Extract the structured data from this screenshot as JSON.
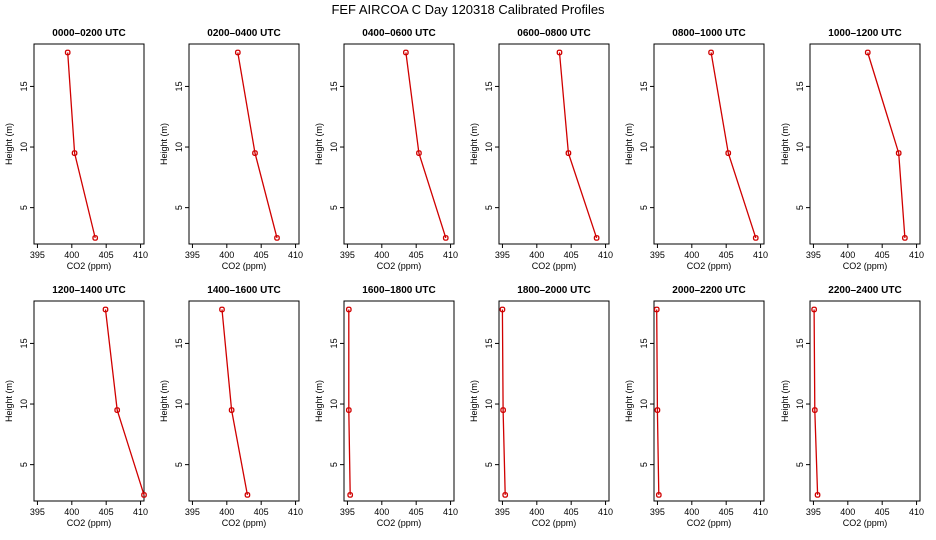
{
  "title": "FEF AIRCOA C  Day 120318  Calibrated Profiles",
  "chart_data": {
    "type": "line",
    "title": "FEF AIRCOA C  Day 120318  Calibrated Profiles",
    "xlabel": "CO2 (ppm)",
    "ylabel": "Height (m)",
    "xlim": [
      394.5,
      410.5
    ],
    "ylim": [
      2,
      18.5
    ],
    "xticks": [
      395,
      400,
      405,
      410
    ],
    "yticks": [
      5,
      10,
      15
    ],
    "heights": [
      17.8,
      9.5,
      2.5
    ],
    "series_color": "#d00000",
    "panels": [
      {
        "title": "0000–0200 UTC",
        "values": [
          399.4,
          400.4,
          403.4
        ]
      },
      {
        "title": "0200–0400 UTC",
        "values": [
          401.6,
          404.1,
          407.3
        ]
      },
      {
        "title": "0400–0600 UTC",
        "values": [
          403.5,
          405.4,
          409.3
        ]
      },
      {
        "title": "0600–0800 UTC",
        "values": [
          403.3,
          404.6,
          408.7
        ]
      },
      {
        "title": "0800–1000 UTC",
        "values": [
          402.8,
          405.3,
          409.3
        ]
      },
      {
        "title": "1000–1200 UTC",
        "values": [
          402.9,
          407.4,
          408.3
        ]
      },
      {
        "title": "1200–1400 UTC",
        "values": [
          404.9,
          406.6,
          410.5
        ]
      },
      {
        "title": "1400–1600 UTC",
        "values": [
          399.3,
          400.7,
          403.0
        ]
      },
      {
        "title": "1600–1800 UTC",
        "values": [
          395.2,
          395.2,
          395.4
        ]
      },
      {
        "title": "1800–2000 UTC",
        "values": [
          395.0,
          395.1,
          395.4
        ]
      },
      {
        "title": "2000–2200 UTC",
        "values": [
          394.9,
          395.0,
          395.2
        ]
      },
      {
        "title": "2200–2400 UTC",
        "values": [
          395.1,
          395.2,
          395.6
        ]
      }
    ]
  }
}
